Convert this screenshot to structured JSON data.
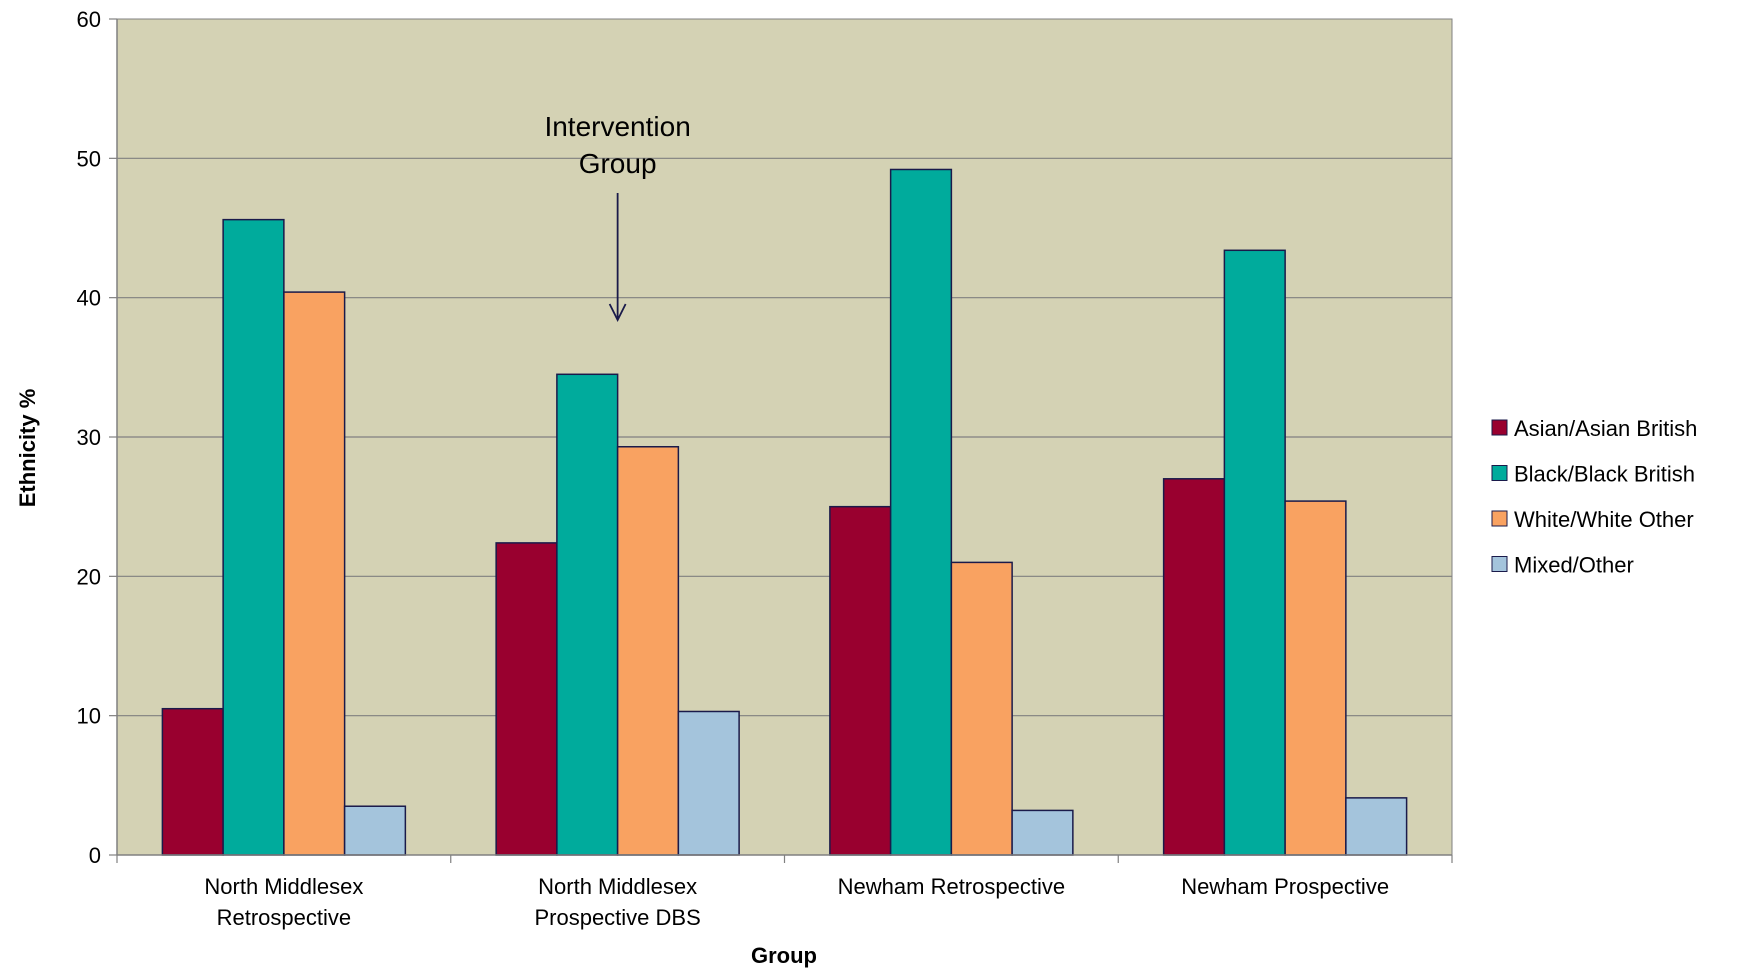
{
  "chart_data": {
    "type": "bar",
    "title": "",
    "xlabel": "Group",
    "ylabel": "Ethnicity %",
    "ylim": [
      0,
      60
    ],
    "yticks": [
      0,
      10,
      20,
      30,
      40,
      50,
      60
    ],
    "grid": true,
    "legend_position": "right",
    "plot_background": "#D4D2B4",
    "categories": [
      [
        "North Middlesex",
        "Retrospective"
      ],
      [
        "North Middlesex",
        "Prospective DBS"
      ],
      [
        "Newham Retrospective"
      ],
      [
        "Newham Prospective"
      ]
    ],
    "series": [
      {
        "name": "Asian/Asian British",
        "color": "#99002F",
        "values": [
          10.5,
          22.4,
          25.0,
          27.0
        ]
      },
      {
        "name": "Black/Black British",
        "color": "#00AB9C",
        "values": [
          45.6,
          34.5,
          49.2,
          43.4
        ]
      },
      {
        "name": "White/White Other",
        "color": "#F9A261",
        "values": [
          40.4,
          29.3,
          21.0,
          25.4
        ]
      },
      {
        "name": "Mixed/Other",
        "color": "#A4C4DC",
        "values": [
          3.5,
          10.3,
          3.2,
          4.1
        ]
      }
    ],
    "annotation": {
      "lines": [
        "Intervention",
        "Group"
      ],
      "category_index": 1
    }
  }
}
